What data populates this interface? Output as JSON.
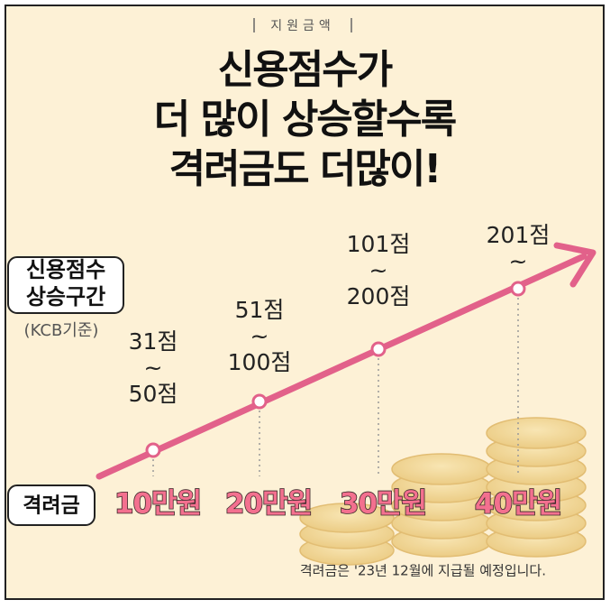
{
  "header": {
    "tag": "지원금액",
    "title_lines": [
      "신용점수가",
      "더 많이 상승할수록",
      "격려금도 더많이!"
    ]
  },
  "score_label": {
    "lines": [
      "신용점수",
      "상승구간"
    ],
    "note": "(KCB기준)"
  },
  "reward_label": "격려금",
  "tiers": [
    {
      "range_lines": [
        "31점",
        "~",
        "50점"
      ],
      "amount": "10만원"
    },
    {
      "range_lines": [
        "51점",
        "~",
        "100점"
      ],
      "amount": "20만원"
    },
    {
      "range_lines": [
        "101점",
        "~",
        "200점"
      ],
      "amount": "30만원"
    },
    {
      "range_lines": [
        "201점",
        "~"
      ],
      "amount": "40만원"
    }
  ],
  "footnote": "격려금은 '23년 12월에 지급될 예정입니다."
}
